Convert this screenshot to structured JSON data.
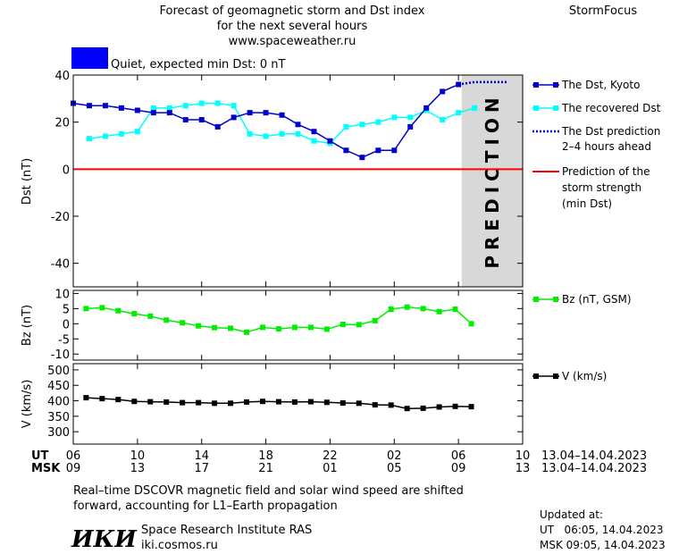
{
  "header": {
    "title_lines": [
      "Forecast of geomagnetic storm and Dst index",
      "for the next several hours",
      "www.spaceweather.ru"
    ],
    "brand": "StormFocus",
    "status_text": "Quiet, expected min Dst: 0 nT",
    "status_color": "#0000ff"
  },
  "colors": {
    "dst": "#0000cc",
    "recovered": "#00ffff",
    "prediction": "#0000cc",
    "storm_line": "#ff0000",
    "bz": "#00ee00",
    "v": "#000000",
    "shade": "#d8d8d8",
    "shade_text": "#f4f4f4"
  },
  "legend": {
    "dst_kyoto": "The Dst, Kyoto",
    "dst_recovered": "The recovered Dst",
    "prediction_lines": [
      "The Dst prediction",
      "2–4 hours ahead"
    ],
    "storm_lines": [
      "Prediction of the",
      "storm strength",
      "(min Dst)"
    ],
    "bz": "Bz (nT, GSM)",
    "v": "V (km/s)"
  },
  "prediction_label": "PREDICTION",
  "time_axis": {
    "ut_label": "UT",
    "msk_label": "MSK",
    "ut_ticks": [
      "06",
      "10",
      "14",
      "18",
      "22",
      "02",
      "06",
      "10"
    ],
    "msk_ticks": [
      "09",
      "13",
      "17",
      "21",
      "01",
      "05",
      "09",
      "13"
    ],
    "date_range": "13.04–14.04.2023",
    "tick_hours": [
      0,
      4,
      8,
      12,
      16,
      20,
      24,
      28
    ],
    "prediction_start_hour": 24.2
  },
  "chart_data": [
    {
      "type": "line",
      "ylabel": "Dst (nT)",
      "ylim": [
        -50,
        40
      ],
      "yticks": [
        40,
        20,
        0,
        -20,
        -40
      ],
      "x_unit": "hours since 06 UT 13.04.2023",
      "storm_min_dst": 0,
      "series": [
        {
          "name": "The Dst, Kyoto",
          "x": [
            0,
            1,
            2,
            3,
            4,
            5,
            6,
            7,
            8,
            9,
            10,
            11,
            12,
            13,
            14,
            15,
            16,
            17,
            18,
            19,
            20,
            21,
            22,
            23,
            24
          ],
          "values": [
            28,
            27,
            27,
            26,
            25,
            24,
            24,
            21,
            21,
            18,
            22,
            24,
            24,
            23,
            19,
            16,
            12,
            8,
            5,
            8,
            8,
            18,
            26,
            33,
            36
          ]
        },
        {
          "name": "The recovered Dst",
          "x": [
            1,
            2,
            3,
            4,
            5,
            6,
            7,
            8,
            9,
            10,
            11,
            12,
            13,
            14,
            15,
            16,
            17,
            18,
            19,
            20,
            21,
            22,
            23,
            24,
            25
          ],
          "values": [
            13,
            14,
            15,
            16,
            26,
            26,
            27,
            28,
            28,
            27,
            15,
            14,
            15,
            15,
            12,
            11,
            18,
            19,
            20,
            22,
            22,
            25,
            21,
            24,
            26
          ]
        },
        {
          "name": "The Dst prediction",
          "x": [
            24,
            25,
            26,
            27
          ],
          "values": [
            36,
            37,
            37,
            37
          ]
        }
      ]
    },
    {
      "type": "line",
      "ylabel": "Bz (nT)",
      "ylim": [
        -12,
        11
      ],
      "yticks": [
        10,
        5,
        0,
        -5,
        -10
      ],
      "series": [
        {
          "name": "Bz (nT, GSM)",
          "x": [
            0.8,
            1.8,
            2.8,
            3.8,
            4.8,
            5.8,
            6.8,
            7.8,
            8.8,
            9.8,
            10.8,
            11.8,
            12.8,
            13.8,
            14.8,
            15.8,
            16.8,
            17.8,
            18.8,
            19.8,
            20.8,
            21.8,
            22.8,
            23.8,
            24.8
          ],
          "values": [
            5,
            5.3,
            4.3,
            3.3,
            2.5,
            1.2,
            0.3,
            -0.7,
            -1.3,
            -1.5,
            -2.8,
            -1.2,
            -1.7,
            -1.2,
            -1.2,
            -1.8,
            -0.2,
            -0.3,
            1,
            4.8,
            5.5,
            5,
            4,
            4.8,
            0
          ]
        }
      ]
    },
    {
      "type": "line",
      "ylabel": "V (km/s)",
      "ylim": [
        260,
        520
      ],
      "yticks": [
        500,
        450,
        400,
        350,
        300
      ],
      "series": [
        {
          "name": "V (km/s)",
          "x": [
            0.8,
            1.8,
            2.8,
            3.8,
            4.8,
            5.8,
            6.8,
            7.8,
            8.8,
            9.8,
            10.8,
            11.8,
            12.8,
            13.8,
            14.8,
            15.8,
            16.8,
            17.8,
            18.8,
            19.8,
            20.8,
            21.8,
            22.8,
            23.8,
            24.8
          ],
          "values": [
            410,
            407,
            404,
            398,
            397,
            396,
            394,
            394,
            392,
            392,
            396,
            398,
            397,
            396,
            397,
            395,
            393,
            392,
            387,
            386,
            375,
            376,
            380,
            382,
            381
          ]
        }
      ]
    }
  ],
  "footer": {
    "note_lines": [
      "Real–time DSCOVR magnetic field and solar wind speed are shifted",
      "forward, accounting for L1–Earth propagation"
    ],
    "logo_text": "ИКИ",
    "institute": "Space Research Institute RAS",
    "site": "iki.cosmos.ru",
    "updated_label": "Updated at:",
    "updated_ut": "UT   06:05, 14.04.2023",
    "updated_msk": "MSK 09:05, 14.04.2023"
  }
}
